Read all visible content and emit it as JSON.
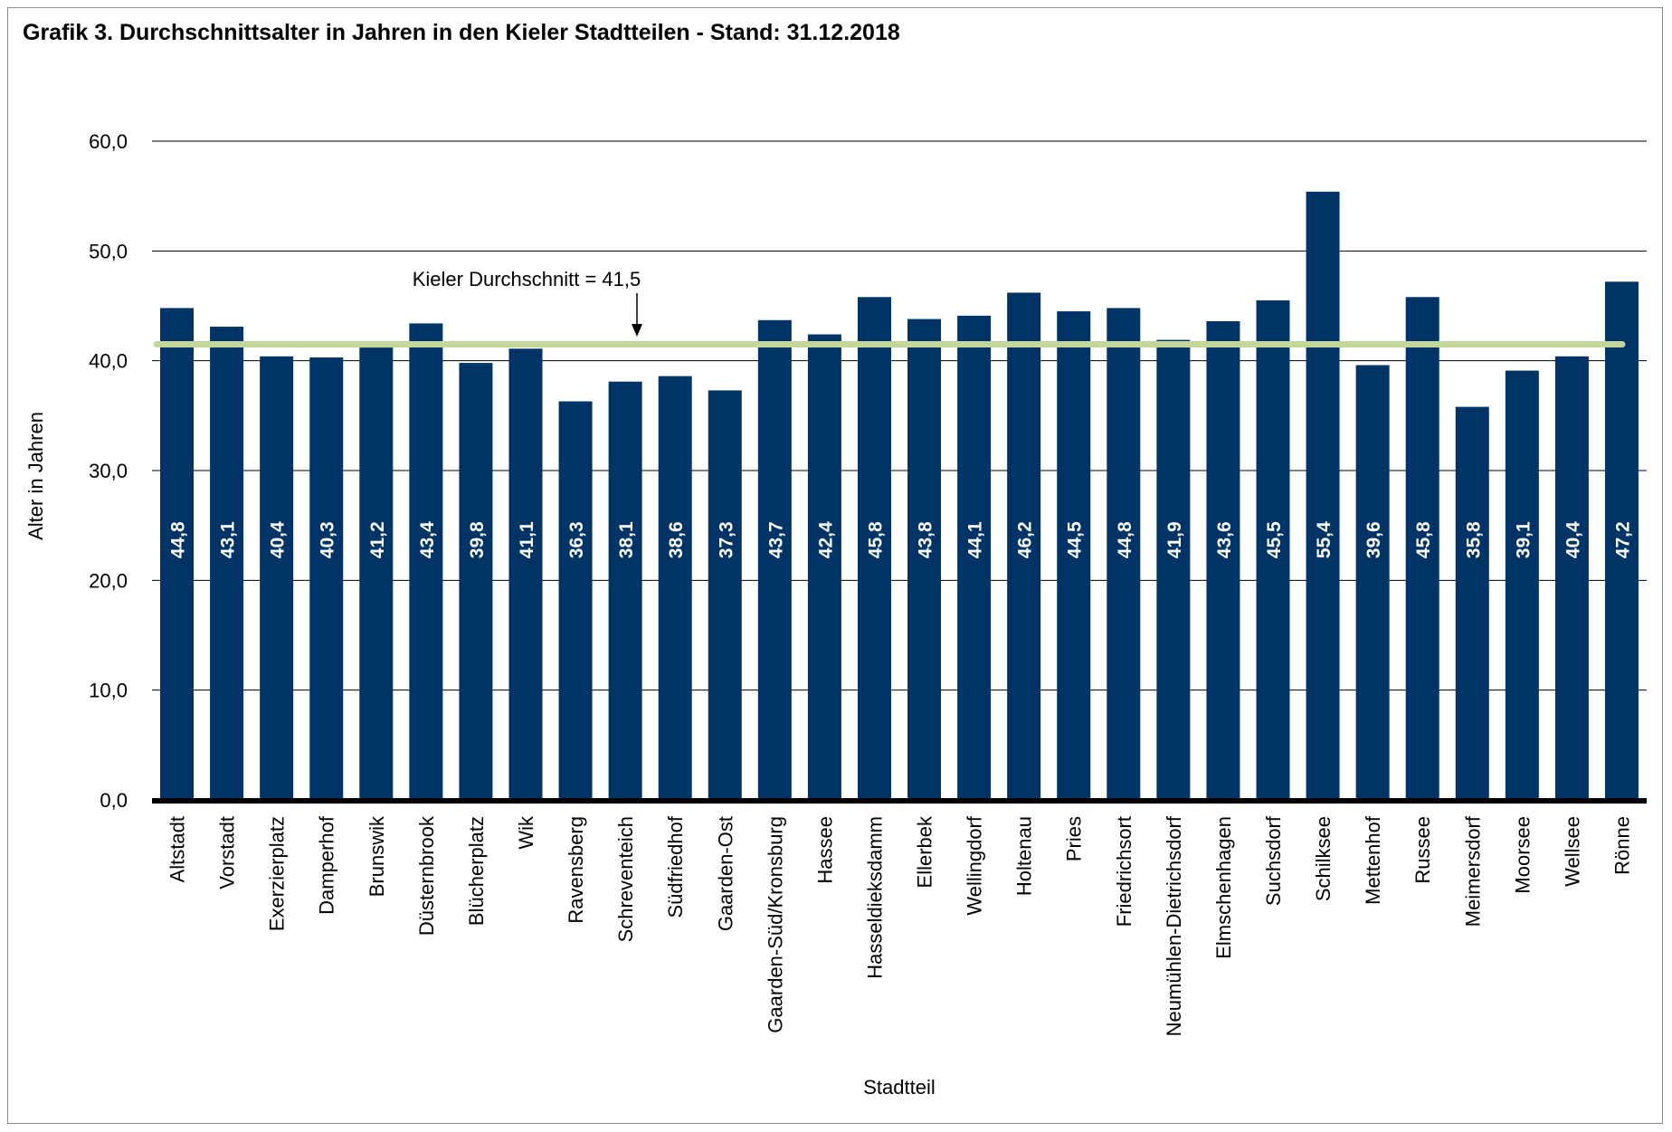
{
  "chart_data": {
    "type": "bar",
    "title": "Grafik 3. Durchschnittsalter in Jahren in den Kieler Stadtteilen - Stand: 31.12.2018",
    "xlabel": "Stadtteil",
    "ylabel": "Alter in Jahren",
    "ylim": [
      0,
      60
    ],
    "yticks": [
      "0,0",
      "10,0",
      "20,0",
      "30,0",
      "40,0",
      "50,0",
      "60,0"
    ],
    "grid": "horizontal",
    "categories": [
      "Altstadt",
      "Vorstadt",
      "Exerzierplatz",
      "Damperhof",
      "Brunswik",
      "Düsternbrook",
      "Blücherplatz",
      "Wik",
      "Ravensberg",
      "Schreventeich",
      "Südfriedhof",
      "Gaarden-Ost",
      "Gaarden-Süd/Kronsburg",
      "Hassee",
      "Hasseldieksdamm",
      "Ellerbek",
      "Wellingdorf",
      "Holtenau",
      "Pries",
      "Friedrichsort",
      "Neumühlen-Dietrichsdorf",
      "Elmschenhagen",
      "Suchsdorf",
      "Schilksee",
      "Mettenhof",
      "Russee",
      "Meimersdorf",
      "Moorsee",
      "Wellsee",
      "Rönne"
    ],
    "values": [
      44.8,
      43.1,
      40.4,
      40.3,
      41.2,
      43.4,
      39.8,
      41.1,
      36.3,
      38.1,
      38.6,
      37.3,
      43.7,
      42.4,
      45.8,
      43.8,
      44.1,
      46.2,
      44.5,
      44.8,
      41.9,
      43.6,
      45.5,
      55.4,
      39.6,
      45.8,
      35.8,
      39.1,
      40.4,
      47.2
    ],
    "value_labels": [
      "44,8",
      "43,1",
      "40,4",
      "40,3",
      "41,2",
      "43,4",
      "39,8",
      "41,1",
      "36,3",
      "38,1",
      "38,6",
      "37,3",
      "43,7",
      "42,4",
      "45,8",
      "43,8",
      "44,1",
      "46,2",
      "44,5",
      "44,8",
      "41,9",
      "43,6",
      "45,5",
      "55,4",
      "39,6",
      "45,8",
      "35,8",
      "39,1",
      "40,4",
      "47,2"
    ],
    "reference_line": {
      "value": 41.5,
      "label": "Kieler Durchschnitt = 41,5"
    },
    "colors": {
      "bar": "#003366",
      "reference_line": "#c4d79b",
      "axis": "#000000",
      "grid": "#000000",
      "value_label": "#ffffff"
    }
  }
}
